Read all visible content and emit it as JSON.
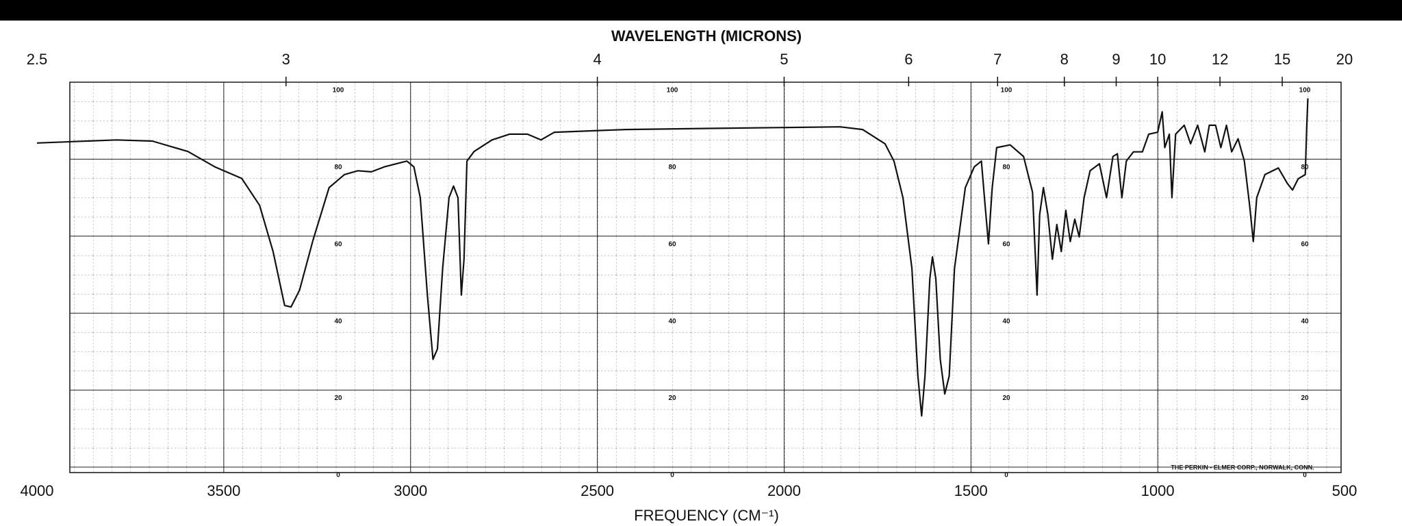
{
  "chart_data": {
    "type": "line",
    "x2label": "WAVELENGTH (MICRONS)",
    "xlabel": "FREQUENCY (CM⁻¹)",
    "annotation": "THE PERKIN - ELMER CORP., NORWALK, CONN.",
    "x": [
      4000,
      3787,
      3691,
      3596,
      3524,
      3452,
      3404,
      3368,
      3337,
      3320,
      3297,
      3261,
      3218,
      3177,
      3141,
      3105,
      3070,
      3010,
      2991,
      2974,
      2955,
      2940,
      2928,
      2914,
      2897,
      2885,
      2873,
      2864,
      2857,
      2849,
      2830,
      2782,
      2735,
      2687,
      2651,
      2615,
      2424,
      2184,
      1850,
      1790,
      1730,
      1706,
      1682,
      1658,
      1642,
      1632,
      1623,
      1610,
      1603,
      1594,
      1582,
      1570,
      1558,
      1544,
      1515,
      1491,
      1472,
      1462,
      1453,
      1443,
      1431,
      1395,
      1359,
      1335,
      1323,
      1316,
      1306,
      1294,
      1282,
      1270,
      1258,
      1246,
      1234,
      1222,
      1210,
      1197,
      1181,
      1156,
      1137,
      1120,
      1108,
      1096,
      1084,
      1065,
      1041,
      1024,
      1000,
      988,
      981,
      969,
      962,
      952,
      929,
      912,
      893,
      874,
      862,
      845,
      831,
      816,
      802,
      785,
      768,
      754,
      744,
      735,
      713,
      677,
      653,
      639,
      624,
      605,
      601,
      598
    ],
    "series": [
      {
        "color": "#111111",
        "values": [
          84.2,
          85,
          84.7,
          82,
          78,
          75,
          68,
          56,
          42,
          41.6,
          46,
          59,
          72.6,
          76,
          77,
          76.7,
          78,
          79.5,
          78,
          70,
          44.7,
          28,
          30.7,
          51.6,
          70,
          73,
          70,
          44.7,
          54,
          79.5,
          82,
          85,
          86.5,
          86.5,
          85,
          87,
          87.7,
          88,
          88.4,
          87.7,
          84,
          79.5,
          70,
          51.6,
          23.7,
          13.3,
          23.7,
          49,
          54.6,
          49,
          28,
          19,
          23.7,
          51.6,
          72.6,
          78,
          79.5,
          68,
          58,
          72.6,
          83,
          83.7,
          80.7,
          71.4,
          44.7,
          65.6,
          72.6,
          65.6,
          54,
          63,
          56,
          66.7,
          58.6,
          64.4,
          59.8,
          70,
          77,
          78.8,
          70,
          80.7,
          81.4,
          70,
          79.5,
          81.9,
          81.9,
          86.5,
          87,
          92.3,
          83,
          86.5,
          70,
          86.5,
          88.8,
          84,
          88.8,
          81.9,
          88.8,
          88.8,
          83,
          88.8,
          81.9,
          85.3,
          79.5,
          68,
          58.6,
          70,
          76,
          77.7,
          73.7,
          72,
          74.9,
          76,
          88.8,
          95.8
        ]
      }
    ],
    "xlim": [
      4000,
      500
    ],
    "xticks": [
      4000,
      3500,
      3000,
      2500,
      2000,
      1500,
      1000,
      500
    ],
    "x2ticks": [
      2.5,
      3,
      4,
      5,
      6,
      7,
      8,
      9,
      10,
      12,
      15,
      20
    ],
    "ylim": [
      0,
      100
    ],
    "yticks": [
      0,
      20,
      40,
      60,
      80,
      100
    ],
    "grid": true
  }
}
